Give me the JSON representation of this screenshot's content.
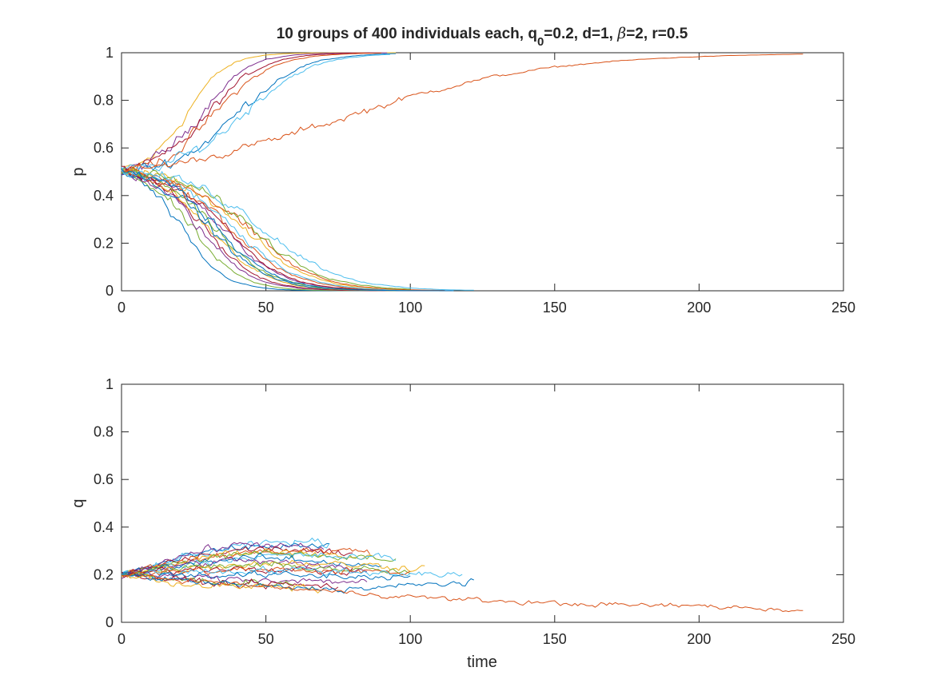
{
  "colors": [
    "#0072BD",
    "#D95319",
    "#EDB120",
    "#7E2F8E",
    "#77AC30",
    "#4DBEEE",
    "#A2142F"
  ],
  "chart_data": [
    {
      "type": "line",
      "title": "10 groups of 400 individuals each, q",
      "title_sub": "0",
      "title_rest_1": "=0.2, d=1, ",
      "title_beta": "β",
      "title_rest_2": "=2, r=0.5",
      "xlabel": "",
      "ylabel": "p",
      "xlim": [
        0,
        250
      ],
      "ylim": [
        0,
        1
      ],
      "x_ticks": [
        "0",
        "50",
        "100",
        "150",
        "200",
        "250"
      ],
      "y_ticks": [
        "0",
        "0.2",
        "0.4",
        "0.6",
        "0.8",
        "1"
      ],
      "grid": false,
      "series_shapes": [
        {
          "color_index": 2,
          "start": 0.5,
          "end": 1,
          "t_end": 95,
          "mid": 22,
          "steep": 0.14,
          "noise": 0.018
        },
        {
          "color_index": 3,
          "start": 0.5,
          "end": 1,
          "t_end": 92,
          "mid": 27,
          "steep": 0.12,
          "noise": 0.018
        },
        {
          "color_index": 6,
          "start": 0.5,
          "end": 1,
          "t_end": 86,
          "mid": 30,
          "steep": 0.11,
          "noise": 0.018
        },
        {
          "color_index": 1,
          "start": 0.5,
          "end": 1,
          "t_end": 90,
          "mid": 32,
          "steep": 0.1,
          "noise": 0.018
        },
        {
          "color_index": 0,
          "start": 0.5,
          "end": 1,
          "t_end": 95,
          "mid": 40,
          "steep": 0.09,
          "noise": 0.018
        },
        {
          "color_index": 5,
          "start": 0.5,
          "end": 1,
          "t_end": 93,
          "mid": 42,
          "steep": 0.085,
          "noise": 0.018
        },
        {
          "color_index": 1,
          "start": 0.5,
          "end": 1,
          "t_end": 236,
          "mid": 75,
          "steep": 0.028,
          "noise": 0.012
        },
        {
          "color_index": 0,
          "start": 0.5,
          "end": 0,
          "t_end": 88,
          "mid": 20,
          "steep": 0.13,
          "noise": 0.016
        },
        {
          "color_index": 4,
          "start": 0.5,
          "end": 0,
          "t_end": 90,
          "mid": 24,
          "steep": 0.12,
          "noise": 0.016
        },
        {
          "color_index": 3,
          "start": 0.5,
          "end": 0,
          "t_end": 95,
          "mid": 27,
          "steep": 0.11,
          "noise": 0.016
        },
        {
          "color_index": 6,
          "start": 0.5,
          "end": 0,
          "t_end": 100,
          "mid": 29,
          "steep": 0.11,
          "noise": 0.016
        },
        {
          "color_index": 2,
          "start": 0.5,
          "end": 0,
          "t_end": 105,
          "mid": 30,
          "steep": 0.1,
          "noise": 0.016
        },
        {
          "color_index": 0,
          "start": 0.5,
          "end": 0,
          "t_end": 110,
          "mid": 31,
          "steep": 0.1,
          "noise": 0.016
        },
        {
          "color_index": 4,
          "start": 0.5,
          "end": 0,
          "t_end": 95,
          "mid": 33,
          "steep": 0.1,
          "noise": 0.016
        },
        {
          "color_index": 3,
          "start": 0.5,
          "end": 0,
          "t_end": 105,
          "mid": 35,
          "steep": 0.095,
          "noise": 0.016
        },
        {
          "color_index": 6,
          "start": 0.5,
          "end": 0,
          "t_end": 95,
          "mid": 36,
          "steep": 0.095,
          "noise": 0.016
        },
        {
          "color_index": 1,
          "start": 0.5,
          "end": 0,
          "t_end": 110,
          "mid": 38,
          "steep": 0.09,
          "noise": 0.016
        },
        {
          "color_index": 5,
          "start": 0.5,
          "end": 0,
          "t_end": 100,
          "mid": 40,
          "steep": 0.09,
          "noise": 0.016
        },
        {
          "color_index": 2,
          "start": 0.5,
          "end": 0,
          "t_end": 105,
          "mid": 42,
          "steep": 0.085,
          "noise": 0.016
        },
        {
          "color_index": 1,
          "start": 0.5,
          "end": 0,
          "t_end": 112,
          "mid": 44,
          "steep": 0.085,
          "noise": 0.016
        },
        {
          "color_index": 4,
          "start": 0.5,
          "end": 0,
          "t_end": 100,
          "mid": 46,
          "steep": 0.08,
          "noise": 0.016
        },
        {
          "color_index": 5,
          "start": 0.5,
          "end": 0,
          "t_end": 122,
          "mid": 50,
          "steep": 0.075,
          "noise": 0.016
        },
        {
          "color_index": 0,
          "start": 0.5,
          "end": 0,
          "t_end": 115,
          "mid": 34,
          "steep": 0.1,
          "noise": 0.016
        }
      ]
    },
    {
      "type": "line",
      "title": "",
      "xlabel": "time",
      "ylabel": "q",
      "xlim": [
        0,
        250
      ],
      "ylim": [
        0,
        1
      ],
      "x_ticks": [
        "0",
        "50",
        "100",
        "150",
        "200",
        "250"
      ],
      "y_ticks": [
        "0",
        "0.2",
        "0.4",
        "0.6",
        "0.8",
        "1"
      ],
      "grid": false,
      "series_shapes": [
        {
          "color_index": 0,
          "start": 0.2,
          "peak": 0.32,
          "peak_t": 55,
          "t_end": 72,
          "end": 0.32,
          "noise": 0.012
        },
        {
          "color_index": 5,
          "start": 0.2,
          "peak": 0.34,
          "peak_t": 65,
          "t_end": 72,
          "end": 0.33,
          "noise": 0.012
        },
        {
          "color_index": 3,
          "start": 0.2,
          "peak": 0.33,
          "peak_t": 50,
          "t_end": 70,
          "end": 0.3,
          "noise": 0.012
        },
        {
          "color_index": 6,
          "start": 0.2,
          "peak": 0.31,
          "peak_t": 55,
          "t_end": 80,
          "end": 0.28,
          "noise": 0.012
        },
        {
          "color_index": 2,
          "start": 0.2,
          "peak": 0.3,
          "peak_t": 55,
          "t_end": 88,
          "end": 0.27,
          "noise": 0.012
        },
        {
          "color_index": 1,
          "start": 0.2,
          "peak": 0.3,
          "peak_t": 60,
          "t_end": 86,
          "end": 0.3,
          "noise": 0.012
        },
        {
          "color_index": 4,
          "start": 0.2,
          "peak": 0.29,
          "peak_t": 55,
          "t_end": 95,
          "end": 0.26,
          "noise": 0.012
        },
        {
          "color_index": 5,
          "start": 0.2,
          "peak": 0.28,
          "peak_t": 60,
          "t_end": 95,
          "end": 0.27,
          "noise": 0.012
        },
        {
          "color_index": 0,
          "start": 0.2,
          "peak": 0.27,
          "peak_t": 50,
          "t_end": 90,
          "end": 0.24,
          "noise": 0.012
        },
        {
          "color_index": 3,
          "start": 0.2,
          "peak": 0.26,
          "peak_t": 45,
          "t_end": 85,
          "end": 0.22,
          "noise": 0.012
        },
        {
          "color_index": 2,
          "start": 0.2,
          "peak": 0.25,
          "peak_t": 60,
          "t_end": 105,
          "end": 0.23,
          "noise": 0.012
        },
        {
          "color_index": 4,
          "start": 0.2,
          "peak": 0.24,
          "peak_t": 50,
          "t_end": 100,
          "end": 0.21,
          "noise": 0.012
        },
        {
          "color_index": 6,
          "start": 0.2,
          "peak": 0.23,
          "peak_t": 40,
          "t_end": 80,
          "end": 0.21,
          "noise": 0.012
        },
        {
          "color_index": 1,
          "start": 0.2,
          "peak": 0.22,
          "peak_t": 50,
          "t_end": 100,
          "end": 0.21,
          "noise": 0.012
        },
        {
          "color_index": 5,
          "start": 0.2,
          "peak": 0.22,
          "peak_t": 60,
          "t_end": 118,
          "end": 0.2,
          "noise": 0.012
        },
        {
          "color_index": 0,
          "start": 0.2,
          "peak": 0.2,
          "peak_t": 40,
          "t_end": 100,
          "end": 0.19,
          "noise": 0.012
        },
        {
          "color_index": 3,
          "start": 0.2,
          "peak": 0.18,
          "peak_t": 50,
          "t_end": 85,
          "end": 0.17,
          "noise": 0.012
        },
        {
          "color_index": 4,
          "start": 0.2,
          "peak": 0.17,
          "peak_t": 40,
          "t_end": 60,
          "end": 0.16,
          "noise": 0.012
        },
        {
          "color_index": 6,
          "start": 0.2,
          "peak": 0.16,
          "peak_t": 50,
          "t_end": 75,
          "end": 0.15,
          "noise": 0.012
        },
        {
          "color_index": 2,
          "start": 0.2,
          "peak": 0.15,
          "peak_t": 40,
          "t_end": 70,
          "end": 0.14,
          "noise": 0.012
        },
        {
          "color_index": 0,
          "start": 0.2,
          "peak": 0.14,
          "peak_t": 80,
          "t_end": 122,
          "end": 0.17,
          "noise": 0.01
        },
        {
          "color_index": 1,
          "start": 0.2,
          "peak": 0.07,
          "peak_t": 200,
          "t_end": 236,
          "end": 0.05,
          "noise": 0.008
        }
      ]
    }
  ]
}
